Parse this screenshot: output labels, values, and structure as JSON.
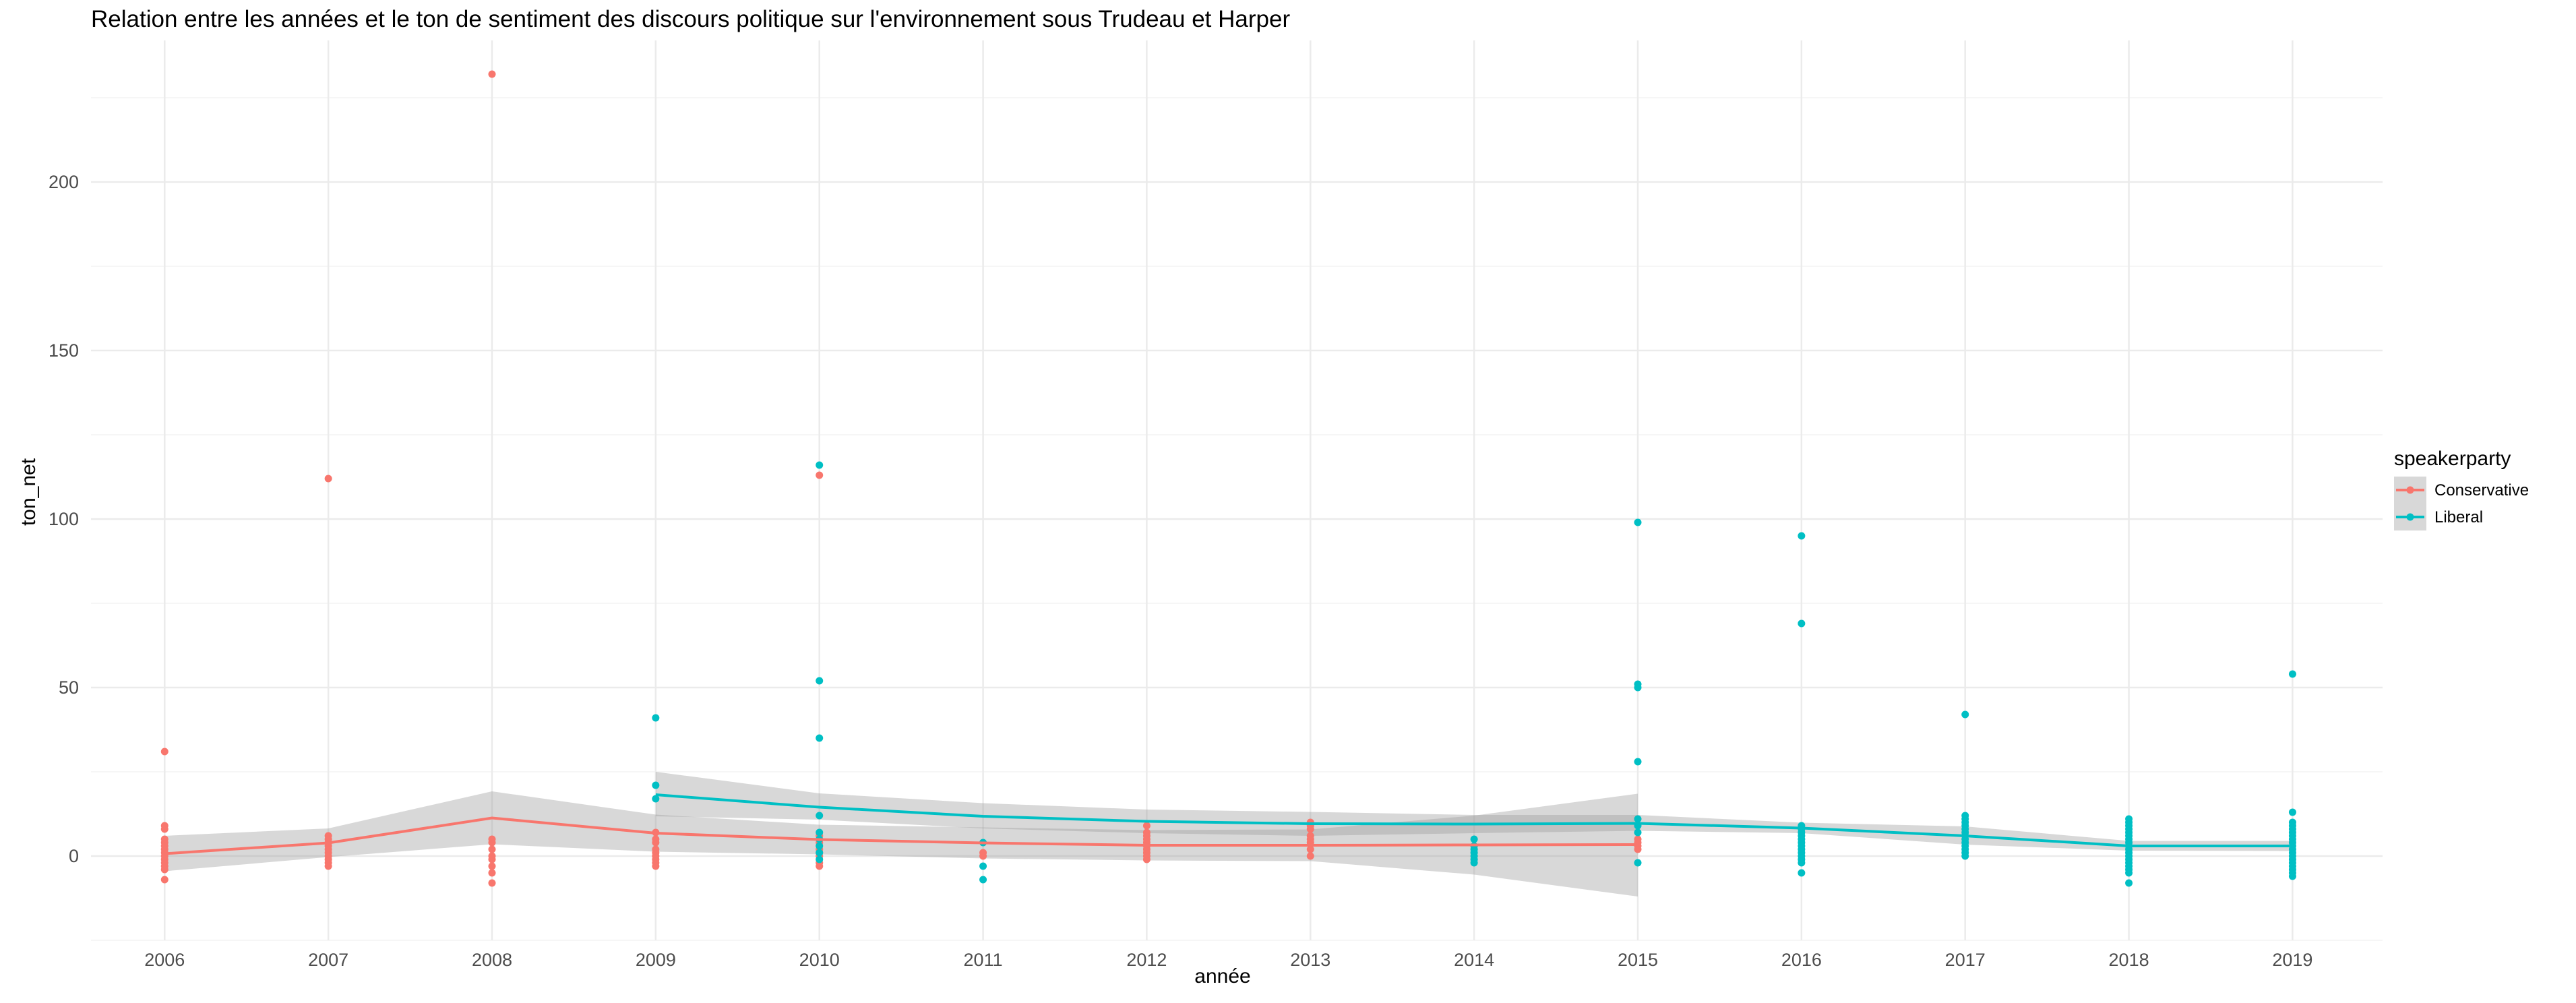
{
  "chart_data": {
    "type": "scatter",
    "title": "Relation entre les années et le ton de sentiment des discours politique sur l'environnement sous Trudeau et Harper",
    "xlabel": "année",
    "ylabel": "ton_net",
    "x_ticks": [
      2006,
      2007,
      2008,
      2009,
      2010,
      2011,
      2012,
      2013,
      2014,
      2015,
      2016,
      2017,
      2018,
      2019
    ],
    "y_ticks": [
      0,
      50,
      100,
      150,
      200
    ],
    "xlim": [
      2005.55,
      2019.55
    ],
    "ylim": [
      -25,
      242
    ],
    "grid": true,
    "legend": {
      "title": "speakerparty",
      "position": "right"
    },
    "colors": {
      "Conservative": "#F8766D",
      "Liberal": "#00BFC4",
      "ribbon": "#999999"
    },
    "series": [
      {
        "name": "Conservative",
        "points": [
          [
            2006,
            31
          ],
          [
            2006,
            9
          ],
          [
            2006,
            8
          ],
          [
            2006,
            5
          ],
          [
            2006,
            4
          ],
          [
            2006,
            3
          ],
          [
            2006,
            2
          ],
          [
            2006,
            1
          ],
          [
            2006,
            0
          ],
          [
            2006,
            -1
          ],
          [
            2006,
            -2
          ],
          [
            2006,
            -3
          ],
          [
            2006,
            -4
          ],
          [
            2006,
            -7
          ],
          [
            2007,
            112
          ],
          [
            2007,
            6
          ],
          [
            2007,
            5
          ],
          [
            2007,
            4
          ],
          [
            2007,
            3
          ],
          [
            2007,
            2
          ],
          [
            2007,
            1
          ],
          [
            2007,
            0
          ],
          [
            2007,
            -1
          ],
          [
            2007,
            -2
          ],
          [
            2007,
            -3
          ],
          [
            2008,
            232
          ],
          [
            2008,
            5
          ],
          [
            2008,
            4
          ],
          [
            2008,
            2
          ],
          [
            2008,
            0
          ],
          [
            2008,
            -1
          ],
          [
            2008,
            -3
          ],
          [
            2008,
            -5
          ],
          [
            2008,
            -8
          ],
          [
            2009,
            7
          ],
          [
            2009,
            5
          ],
          [
            2009,
            4
          ],
          [
            2009,
            2
          ],
          [
            2009,
            1
          ],
          [
            2009,
            0
          ],
          [
            2009,
            -1
          ],
          [
            2009,
            -2
          ],
          [
            2009,
            -3
          ],
          [
            2010,
            113
          ],
          [
            2010,
            6
          ],
          [
            2010,
            4
          ],
          [
            2010,
            2
          ],
          [
            2010,
            1
          ],
          [
            2010,
            0
          ],
          [
            2010,
            -2
          ],
          [
            2010,
            -3
          ],
          [
            2011,
            1
          ],
          [
            2011,
            0
          ],
          [
            2012,
            9
          ],
          [
            2012,
            7
          ],
          [
            2012,
            6
          ],
          [
            2012,
            5
          ],
          [
            2012,
            4
          ],
          [
            2012,
            3
          ],
          [
            2012,
            2
          ],
          [
            2012,
            1
          ],
          [
            2012,
            0
          ],
          [
            2012,
            -1
          ],
          [
            2013,
            10
          ],
          [
            2013,
            9
          ],
          [
            2013,
            8
          ],
          [
            2013,
            6
          ],
          [
            2013,
            5
          ],
          [
            2013,
            4
          ],
          [
            2013,
            2
          ],
          [
            2013,
            0
          ],
          [
            2015,
            5
          ],
          [
            2015,
            4
          ],
          [
            2015,
            3
          ],
          [
            2015,
            2
          ]
        ],
        "trend": {
          "x": [
            2006,
            2007,
            2008,
            2009,
            2010,
            2011,
            2012,
            2013,
            2014,
            2015
          ],
          "y": [
            0.7,
            3.9,
            11.3,
            6.8,
            4.9,
            3.9,
            3.2,
            3.2,
            3.3,
            3.4
          ],
          "lower": [
            -4.5,
            -0.3,
            3.5,
            1.3,
            0.5,
            -0.7,
            -1.3,
            -1.5,
            -5.5,
            -12
          ],
          "upper": [
            6.0,
            8.2,
            19.2,
            12.3,
            9.3,
            8.5,
            7.7,
            7.9,
            12.0,
            18.5
          ]
        }
      },
      {
        "name": "Liberal",
        "points": [
          [
            2009,
            41
          ],
          [
            2009,
            21
          ],
          [
            2009,
            17
          ],
          [
            2010,
            116
          ],
          [
            2010,
            52
          ],
          [
            2010,
            35
          ],
          [
            2010,
            12
          ],
          [
            2010,
            7
          ],
          [
            2010,
            5
          ],
          [
            2010,
            3
          ],
          [
            2010,
            1
          ],
          [
            2010,
            -1
          ],
          [
            2011,
            4
          ],
          [
            2011,
            -3
          ],
          [
            2011,
            -7
          ],
          [
            2014,
            5
          ],
          [
            2014,
            3
          ],
          [
            2014,
            2
          ],
          [
            2014,
            1
          ],
          [
            2014,
            0
          ],
          [
            2014,
            -1
          ],
          [
            2014,
            -2
          ],
          [
            2015,
            99
          ],
          [
            2015,
            51
          ],
          [
            2015,
            50
          ],
          [
            2015,
            28
          ],
          [
            2015,
            11
          ],
          [
            2015,
            9
          ],
          [
            2015,
            7
          ],
          [
            2015,
            -2
          ],
          [
            2016,
            95
          ],
          [
            2016,
            69
          ],
          [
            2016,
            9
          ],
          [
            2016,
            8
          ],
          [
            2016,
            7
          ],
          [
            2016,
            6
          ],
          [
            2016,
            5
          ],
          [
            2016,
            4
          ],
          [
            2016,
            3
          ],
          [
            2016,
            2
          ],
          [
            2016,
            1
          ],
          [
            2016,
            0
          ],
          [
            2016,
            -1
          ],
          [
            2016,
            -2
          ],
          [
            2016,
            -5
          ],
          [
            2017,
            42
          ],
          [
            2017,
            12
          ],
          [
            2017,
            11
          ],
          [
            2017,
            10
          ],
          [
            2017,
            9
          ],
          [
            2017,
            8
          ],
          [
            2017,
            7
          ],
          [
            2017,
            6
          ],
          [
            2017,
            5
          ],
          [
            2017,
            4
          ],
          [
            2017,
            3
          ],
          [
            2017,
            2
          ],
          [
            2017,
            1
          ],
          [
            2017,
            0
          ],
          [
            2018,
            11
          ],
          [
            2018,
            10
          ],
          [
            2018,
            9
          ],
          [
            2018,
            8
          ],
          [
            2018,
            7
          ],
          [
            2018,
            6
          ],
          [
            2018,
            5
          ],
          [
            2018,
            4
          ],
          [
            2018,
            3
          ],
          [
            2018,
            2
          ],
          [
            2018,
            1
          ],
          [
            2018,
            0
          ],
          [
            2018,
            -1
          ],
          [
            2018,
            -2
          ],
          [
            2018,
            -3
          ],
          [
            2018,
            -4
          ],
          [
            2018,
            -5
          ],
          [
            2018,
            -8
          ],
          [
            2019,
            54
          ],
          [
            2019,
            13
          ],
          [
            2019,
            10
          ],
          [
            2019,
            9
          ],
          [
            2019,
            8
          ],
          [
            2019,
            7
          ],
          [
            2019,
            6
          ],
          [
            2019,
            5
          ],
          [
            2019,
            4
          ],
          [
            2019,
            3
          ],
          [
            2019,
            2
          ],
          [
            2019,
            1
          ],
          [
            2019,
            0
          ],
          [
            2019,
            -1
          ],
          [
            2019,
            -2
          ],
          [
            2019,
            -3
          ],
          [
            2019,
            -4
          ],
          [
            2019,
            -5
          ],
          [
            2019,
            -6
          ]
        ],
        "trend": {
          "x": [
            2009,
            2010,
            2011,
            2012,
            2013,
            2014,
            2015,
            2016,
            2017,
            2018,
            2019
          ],
          "y": [
            18.2,
            14.5,
            11.8,
            10.3,
            9.6,
            9.5,
            9.7,
            8.3,
            6.0,
            3.0,
            3.0
          ],
          "lower": [
            11.8,
            10.8,
            8.2,
            6.8,
            6.0,
            6.8,
            7.5,
            6.8,
            3.4,
            1.6,
            1.5
          ],
          "upper": [
            25.0,
            18.6,
            15.7,
            13.8,
            13.1,
            12.2,
            12.2,
            9.9,
            8.8,
            4.5,
            4.5
          ]
        }
      }
    ]
  }
}
